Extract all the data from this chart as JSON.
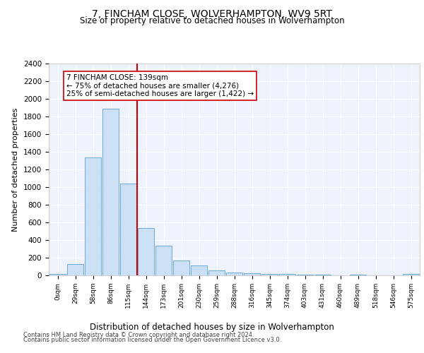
{
  "title": "7, FINCHAM CLOSE, WOLVERHAMPTON, WV9 5RT",
  "subtitle": "Size of property relative to detached houses in Wolverhampton",
  "xlabel": "Distribution of detached houses by size in Wolverhampton",
  "ylabel": "Number of detached properties",
  "categories": [
    "0sqm",
    "29sqm",
    "58sqm",
    "86sqm",
    "115sqm",
    "144sqm",
    "173sqm",
    "201sqm",
    "230sqm",
    "259sqm",
    "288sqm",
    "316sqm",
    "345sqm",
    "374sqm",
    "403sqm",
    "431sqm",
    "460sqm",
    "489sqm",
    "518sqm",
    "546sqm",
    "575sqm"
  ],
  "values": [
    20,
    130,
    1340,
    1890,
    1040,
    540,
    340,
    170,
    110,
    55,
    35,
    25,
    20,
    15,
    10,
    8,
    0,
    5,
    0,
    0,
    20
  ],
  "bar_color": "#cce0f5",
  "bar_edge_color": "#5a9fd4",
  "vline_x_index": 5,
  "vline_color": "#cc0000",
  "annotation_text": "7 FINCHAM CLOSE: 139sqm\n← 75% of detached houses are smaller (4,276)\n25% of semi-detached houses are larger (1,422) →",
  "annotation_box_color": "#ffffff",
  "annotation_box_edge_color": "#cc0000",
  "ylim": [
    0,
    2400
  ],
  "yticks": [
    0,
    200,
    400,
    600,
    800,
    1000,
    1200,
    1400,
    1600,
    1800,
    2000,
    2200,
    2400
  ],
  "footer1": "Contains HM Land Registry data © Crown copyright and database right 2024.",
  "footer2": "Contains public sector information licensed under the Open Government Licence v3.0.",
  "bg_color": "#eef3fb",
  "grid_color": "#ffffff"
}
